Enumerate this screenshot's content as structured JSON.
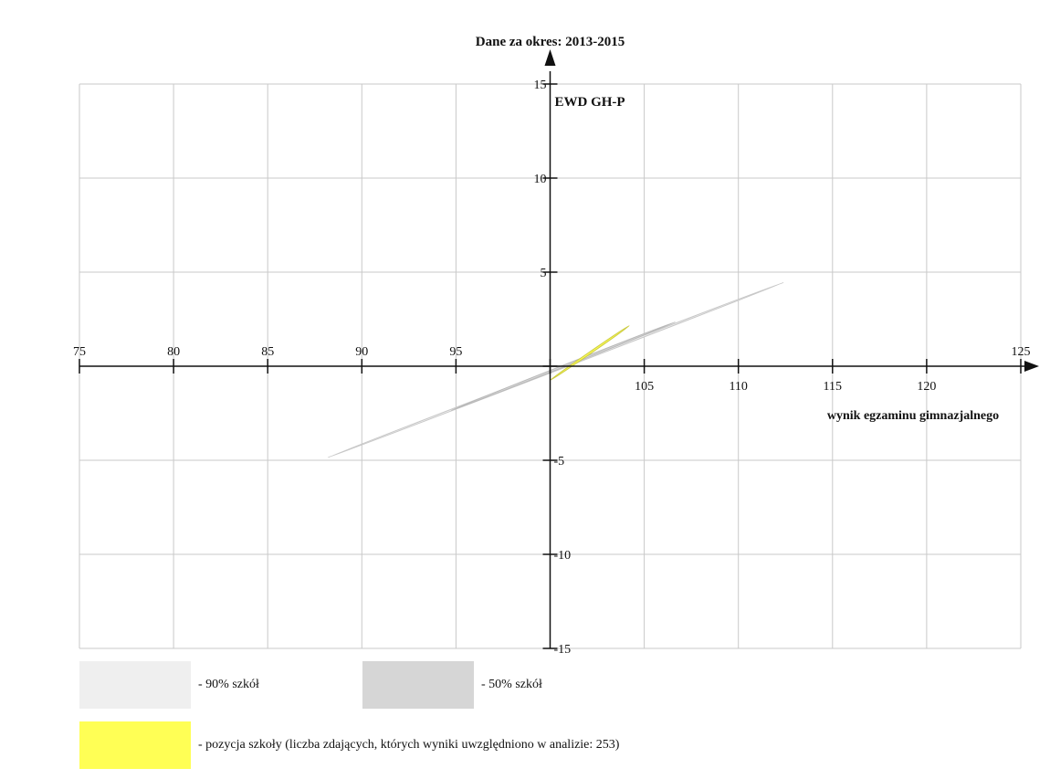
{
  "chart_data": {
    "type": "scatter",
    "title": "Dane za okres: 2013-2015",
    "xlabel": "wynik egzaminu gimnazjalnego",
    "ylabel": "EWD GH-P",
    "xlim": [
      75,
      125
    ],
    "ylim": [
      -15,
      15
    ],
    "x_ticks": [
      75,
      80,
      85,
      90,
      95,
      100,
      105,
      110,
      115,
      120,
      125
    ],
    "x_tick_labels": [
      "75",
      "80",
      "85",
      "90",
      "95",
      "",
      "105",
      "110",
      "115",
      "120",
      "125"
    ],
    "y_ticks": [
      -15,
      -10,
      -5,
      0,
      5,
      10,
      15
    ],
    "y_tick_labels": [
      "-15",
      "-10",
      "-5",
      "",
      "5",
      "10",
      "15"
    ],
    "grid": true,
    "regions": [
      {
        "name": "90% szkół",
        "center_x": 100.3,
        "center_y": -0.2,
        "x_min": 87.8,
        "x_max": 112.0,
        "y_min": -4.7,
        "y_max": 4.6,
        "color": "#efefef",
        "stroke": "#c8c8c8"
      },
      {
        "name": "50% szkół",
        "center_x": 100.7,
        "center_y": 0.0,
        "x_min": 94.1,
        "x_max": 106.0,
        "y_min": -2.5,
        "y_max": 2.2,
        "color": "#d6d6d6",
        "stroke": "#b8b8b8"
      },
      {
        "name": "pozycja szkoły",
        "center_x": 102.1,
        "center_y": 0.7,
        "x_min": 100.0,
        "x_max": 104.2,
        "y_min": -0.8,
        "y_max": 2.1,
        "color": "#ffff55",
        "stroke": "#cccc44"
      }
    ],
    "legend": {
      "placement": "bottom",
      "items": [
        {
          "label": "- 90% szkół",
          "color": "#efefef"
        },
        {
          "label": "- 50% szkół",
          "color": "#d6d6d6"
        },
        {
          "label": "- pozycja szkoły (liczba zdających, których wyniki uwzględniono w analizie: 253)",
          "color": "#ffff55"
        }
      ]
    },
    "colors": {
      "axis": "#111111",
      "grid": "#c9c9c9"
    }
  }
}
